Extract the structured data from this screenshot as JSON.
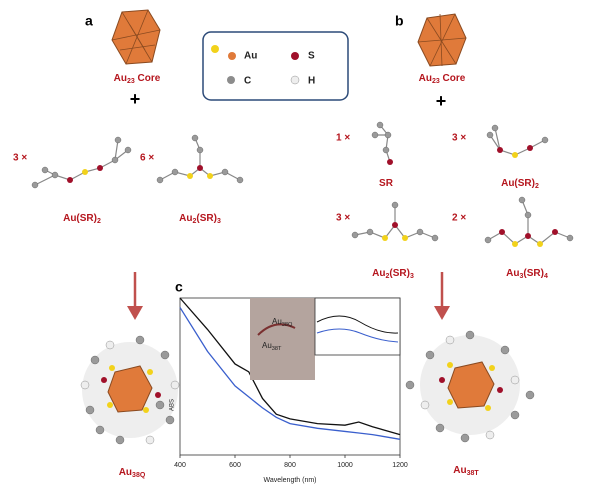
{
  "legend": [
    "Au",
    "S",
    "C",
    "H"
  ],
  "panel_a": {
    "label": "a",
    "core": [
      "Au",
      "23",
      " Core"
    ],
    "plus": "+",
    "ligands": [
      {
        "count": "3 ×",
        "formula": [
          "Au(SR)",
          "2"
        ]
      },
      {
        "count": "6 ×",
        "formula": [
          "Au",
          "2",
          "(SR)",
          "3"
        ]
      }
    ],
    "product": [
      "Au",
      "38Q"
    ]
  },
  "panel_b": {
    "label": "b",
    "core": [
      "Au",
      "23",
      " Core"
    ],
    "plus": "+",
    "ligands": [
      {
        "count": "1 ×",
        "formula": [
          "SR"
        ]
      },
      {
        "count": "3 ×",
        "formula": [
          "Au(SR)",
          "2"
        ]
      },
      {
        "count": "3 ×",
        "formula": [
          "Au",
          "2",
          "(SR)",
          "3"
        ]
      },
      {
        "count": "2 ×",
        "formula": [
          "Au",
          "3",
          "(SR)",
          "4"
        ]
      }
    ],
    "product": [
      "Au",
      "38T"
    ]
  },
  "chart_data": {
    "type": "line",
    "label": "c",
    "x": [
      400,
      500,
      600,
      650,
      700,
      750,
      800,
      900,
      1000,
      1050,
      1100,
      1200
    ],
    "series": [
      {
        "color": "#111111",
        "values": [
          1.0,
          0.8,
          0.58,
          0.53,
          0.36,
          0.26,
          0.23,
          0.2,
          0.19,
          0.21,
          0.18,
          0.13
        ]
      },
      {
        "color": "#3a5fcd",
        "values": [
          0.94,
          0.66,
          0.44,
          0.37,
          0.3,
          0.24,
          0.2,
          0.17,
          0.15,
          0.14,
          0.13,
          0.1
        ]
      }
    ],
    "xlim": [
      400,
      1200
    ],
    "xticks": [
      400,
      600,
      800,
      1000,
      1200
    ],
    "ylim": [
      0,
      1
    ],
    "xlabel": "Wavelength (nm)",
    "ylabel": "ABS",
    "annotations": [
      [
        "Au",
        "38Q"
      ],
      [
        "Au",
        "38T"
      ]
    ]
  }
}
